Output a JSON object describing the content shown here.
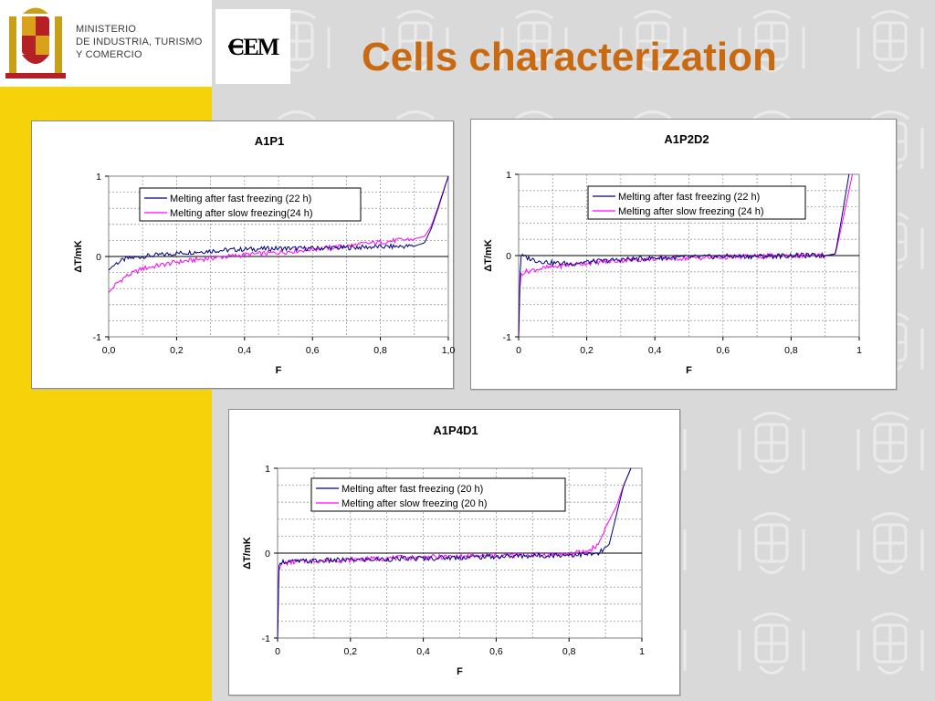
{
  "header": {
    "ministry_lines": [
      "MINISTERIO",
      "DE INDUSTRIA, TURISMO",
      "Y COMERCIO"
    ],
    "cem_logo_text": "CEM",
    "title": "Cells characterization"
  },
  "colors": {
    "title": "#c96a10",
    "yellow": "#f5d20a",
    "fast_series": "#000080",
    "slow_series": "#ff00ff"
  },
  "chart_data": [
    {
      "type": "line",
      "title": "A1P1",
      "xlabel": "F",
      "ylabel": "ΔT/mK",
      "xlim": [
        0,
        1
      ],
      "ylim": [
        -1,
        1
      ],
      "xticks": [
        "0,0",
        "0,2",
        "0,4",
        "0,6",
        "0,8",
        "1,0"
      ],
      "yticks": [
        "-1",
        "0",
        "1"
      ],
      "grid": true,
      "legend_position": "top-center",
      "series": [
        {
          "name": "Melting after fast freezing (22 h)",
          "color": "#000080",
          "x": [
            0.0,
            0.02,
            0.05,
            0.1,
            0.2,
            0.3,
            0.4,
            0.5,
            0.6,
            0.7,
            0.8,
            0.9,
            0.93,
            0.95,
            0.97,
            1.0
          ],
          "y": [
            -0.17,
            -0.09,
            -0.03,
            0.0,
            0.04,
            0.07,
            0.09,
            0.1,
            0.1,
            0.11,
            0.12,
            0.13,
            0.17,
            0.35,
            0.6,
            1.0
          ]
        },
        {
          "name": "Melting after slow freezing(24 h)",
          "color": "#ff00ff",
          "x": [
            0.0,
            0.02,
            0.05,
            0.1,
            0.2,
            0.3,
            0.4,
            0.5,
            0.6,
            0.7,
            0.8,
            0.9,
            0.93,
            0.95,
            0.97,
            1.0
          ],
          "y": [
            -0.45,
            -0.35,
            -0.25,
            -0.15,
            -0.07,
            -0.02,
            0.02,
            0.05,
            0.09,
            0.13,
            0.18,
            0.22,
            0.25,
            0.38,
            0.62,
            1.0
          ]
        }
      ]
    },
    {
      "type": "line",
      "title": "A1P2D2",
      "xlabel": "F",
      "ylabel": "ΔT/mK",
      "xlim": [
        0,
        1
      ],
      "ylim": [
        -1,
        1
      ],
      "xticks": [
        "0",
        "0,2",
        "0,4",
        "0,6",
        "0,8",
        "1"
      ],
      "yticks": [
        "-1",
        "0",
        "1"
      ],
      "grid": true,
      "legend_position": "top-right",
      "series": [
        {
          "name": "Melting after fast freezing (22 h)",
          "color": "#000080",
          "x": [
            0.0,
            0.005,
            0.02,
            0.05,
            0.1,
            0.15,
            0.2,
            0.3,
            0.4,
            0.5,
            0.6,
            0.7,
            0.8,
            0.9,
            0.93,
            0.95,
            0.97
          ],
          "y": [
            -1.0,
            0.0,
            -0.02,
            -0.06,
            -0.09,
            -0.1,
            -0.08,
            -0.05,
            -0.03,
            -0.02,
            -0.01,
            -0.01,
            0.0,
            0.0,
            0.02,
            0.5,
            1.0
          ]
        },
        {
          "name": "Melting after slow freezing (24 h)",
          "color": "#ff00ff",
          "x": [
            0.0,
            0.005,
            0.02,
            0.05,
            0.1,
            0.2,
            0.3,
            0.4,
            0.5,
            0.6,
            0.7,
            0.8,
            0.9,
            0.93,
            0.945,
            0.965,
            0.98
          ],
          "y": [
            -1.0,
            -0.22,
            -0.2,
            -0.17,
            -0.14,
            -0.09,
            -0.06,
            -0.04,
            -0.03,
            -0.02,
            -0.01,
            0.0,
            0.0,
            0.02,
            0.3,
            0.7,
            1.0
          ]
        }
      ]
    },
    {
      "type": "line",
      "title": "A1P4D1",
      "xlabel": "F",
      "ylabel": "ΔT/mK",
      "xlim": [
        0,
        1
      ],
      "ylim": [
        -1,
        1
      ],
      "xticks": [
        "0",
        "0,2",
        "0,4",
        "0,6",
        "0,8",
        "1"
      ],
      "yticks": [
        "-1",
        "0",
        "1"
      ],
      "grid": true,
      "legend_position": "top-center",
      "series": [
        {
          "name": "Melting after fast freezing (20 h)",
          "color": "#000080",
          "x": [
            0.0,
            0.003,
            0.01,
            0.05,
            0.1,
            0.2,
            0.3,
            0.4,
            0.5,
            0.6,
            0.7,
            0.8,
            0.88,
            0.91,
            0.93,
            0.95,
            0.97
          ],
          "y": [
            -1.0,
            -0.15,
            -0.1,
            -0.1,
            -0.09,
            -0.08,
            -0.07,
            -0.06,
            -0.05,
            -0.04,
            -0.03,
            -0.02,
            -0.01,
            0.1,
            0.45,
            0.8,
            1.0
          ]
        },
        {
          "name": "Melting after slow freezing (20 h)",
          "color": "#ff00ff",
          "x": [
            0.0,
            0.003,
            0.01,
            0.05,
            0.1,
            0.2,
            0.3,
            0.4,
            0.5,
            0.6,
            0.7,
            0.8,
            0.85,
            0.88,
            0.9,
            0.93,
            0.95,
            0.97
          ],
          "y": [
            -1.0,
            -0.22,
            -0.12,
            -0.1,
            -0.09,
            -0.08,
            -0.06,
            -0.05,
            -0.04,
            -0.03,
            -0.02,
            -0.01,
            0.02,
            0.1,
            0.3,
            0.55,
            0.8,
            1.0
          ]
        }
      ]
    }
  ]
}
